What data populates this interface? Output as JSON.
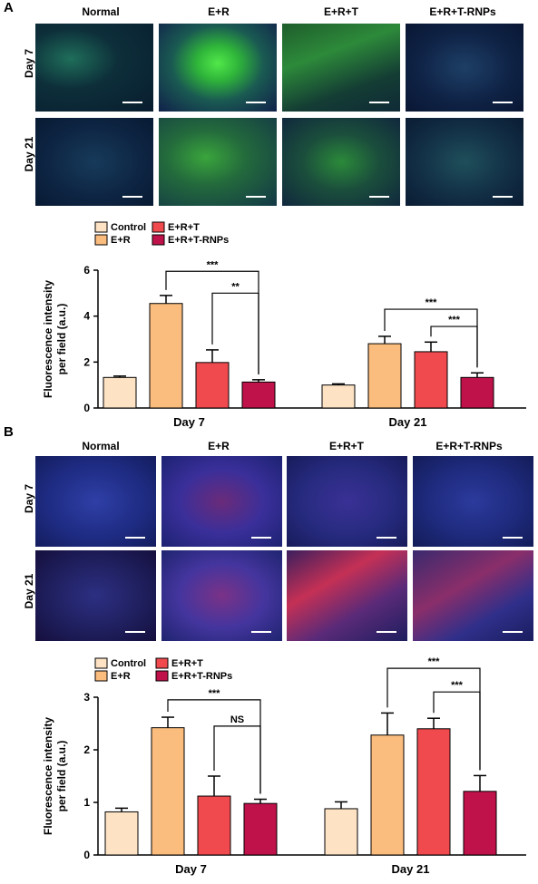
{
  "panels": [
    {
      "letter": "A",
      "columns": [
        "Normal",
        "E+R",
        "E+R+T",
        "E+R+T-RNPs"
      ],
      "rows": [
        "Day 7",
        "Day 21"
      ],
      "stain": "green"
    },
    {
      "letter": "B",
      "columns": [
        "Normal",
        "E+R",
        "E+R+T",
        "E+R+T-RNPs"
      ],
      "rows": [
        "Day 7",
        "Day 21"
      ],
      "stain": "red"
    }
  ],
  "colors": {
    "control": "#fde2c4",
    "er": "#fbbd7e",
    "ert": "#f04a4e",
    "ertrnp": "#c0124a",
    "nucleus": "#2a3fb5",
    "green_stain": "#35d23a",
    "red_stain": "#e8333a"
  },
  "chart_data": [
    {
      "type": "bar",
      "ylabel": "Fluorescence intensity per field (a.u.)",
      "ylim": [
        0,
        6
      ],
      "yticks": [
        "0",
        "2",
        "4",
        "6"
      ],
      "categories": [
        "Day 7",
        "Day 21"
      ],
      "legend": [
        "Control",
        "E+R",
        "E+R+T",
        "E+R+T-RNPs"
      ],
      "series": [
        {
          "name": "Control",
          "values": [
            1.33,
            1.0
          ],
          "errors": [
            0.06,
            0.05
          ]
        },
        {
          "name": "E+R",
          "values": [
            4.55,
            2.8
          ],
          "errors": [
            0.35,
            0.32
          ]
        },
        {
          "name": "E+R+T",
          "values": [
            1.98,
            2.45
          ],
          "errors": [
            0.55,
            0.42
          ]
        },
        {
          "name": "E+R+T-RNPs",
          "values": [
            1.13,
            1.33
          ],
          "errors": [
            0.1,
            0.2
          ]
        }
      ],
      "significance": [
        {
          "group": 0,
          "from": 1,
          "to": 3,
          "label": "***",
          "y": 5.95
        },
        {
          "group": 0,
          "from": 2,
          "to": 3,
          "label": "**",
          "y": 5.0
        },
        {
          "group": 1,
          "from": 1,
          "to": 3,
          "label": "***",
          "y": 4.3
        },
        {
          "group": 1,
          "from": 2,
          "to": 3,
          "label": "***",
          "y": 3.55
        }
      ]
    },
    {
      "type": "bar",
      "ylabel": "Fluorescence intensity per field (a.u.)",
      "ylim": [
        0,
        3
      ],
      "yticks": [
        "0",
        "1",
        "2",
        "3"
      ],
      "categories": [
        "Day 7",
        "Day 21"
      ],
      "legend": [
        "Control",
        "E+R",
        "E+R+T",
        "E+R+T-RNPs"
      ],
      "series": [
        {
          "name": "Control",
          "values": [
            0.82,
            0.88
          ],
          "errors": [
            0.07,
            0.13
          ]
        },
        {
          "name": "E+R",
          "values": [
            2.42,
            2.28
          ],
          "errors": [
            0.2,
            0.42
          ]
        },
        {
          "name": "E+R+T",
          "values": [
            1.12,
            2.4
          ],
          "errors": [
            0.38,
            0.2
          ]
        },
        {
          "name": "E+R+T-RNPs",
          "values": [
            0.98,
            1.21
          ],
          "errors": [
            0.08,
            0.3
          ]
        }
      ],
      "significance": [
        {
          "group": 0,
          "from": 1,
          "to": 3,
          "label": "***",
          "y": 2.95
        },
        {
          "group": 0,
          "from": 2,
          "to": 3,
          "label": "NS",
          "y": 2.45
        },
        {
          "group": 1,
          "from": 1,
          "to": 3,
          "label": "***",
          "y": 3.55
        },
        {
          "group": 1,
          "from": 2,
          "to": 3,
          "label": "***",
          "y": 3.1
        }
      ]
    }
  ]
}
